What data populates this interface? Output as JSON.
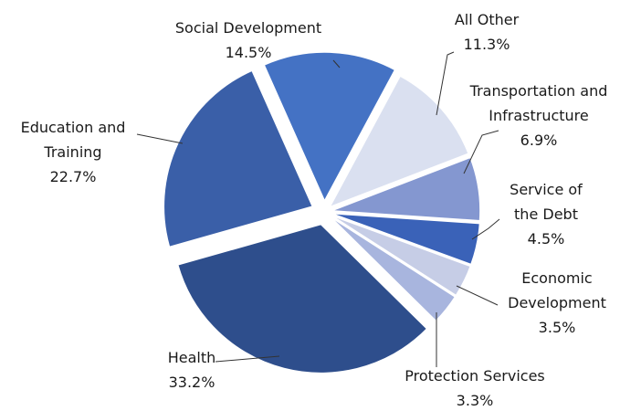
{
  "chart_data": {
    "type": "pie",
    "categories": [
      "Social Development",
      "All Other",
      "Transportation and Infrastructure",
      "Service of the Debt",
      "Economic Development",
      "Protection Services",
      "Health",
      "Education and Training"
    ],
    "values": [
      14.5,
      11.3,
      6.9,
      4.5,
      3.5,
      3.3,
      33.2,
      22.7
    ],
    "value_labels": [
      "14.5%",
      "11.3%",
      "6.9%",
      "4.5%",
      "3.5%",
      "3.3%",
      "33.2%",
      "22.7%"
    ],
    "colors": [
      "#4472c4",
      "#dae0f0",
      "#8497d0",
      "#3a62b8",
      "#c6cde6",
      "#a8b5de",
      "#2e4e8c",
      "#3a5fa8"
    ]
  }
}
